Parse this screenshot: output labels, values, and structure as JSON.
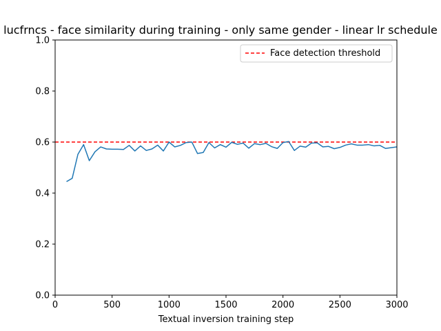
{
  "chart_data": {
    "type": "line",
    "title": "lucfrncs - face similarity during training - only same gender - linear lr schedule",
    "xlabel": "Textual inversion training step",
    "ylabel": "",
    "xlim": [
      0,
      3000
    ],
    "ylim": [
      0,
      1.0
    ],
    "xticks": [
      0,
      500,
      1000,
      1500,
      2000,
      2500,
      3000
    ],
    "xtick_labels": [
      "0",
      "500",
      "1000",
      "1500",
      "2000",
      "2500",
      "3000"
    ],
    "yticks": [
      0.0,
      0.2,
      0.4,
      0.6,
      0.8,
      1.0
    ],
    "ytick_labels": [
      "0.0",
      "0.2",
      "0.4",
      "0.6",
      "0.8",
      "1.0"
    ],
    "grid": false,
    "legend_position": "top-right",
    "colors": {
      "series": "#1f77b4",
      "threshold": "#ff0000"
    },
    "series": [
      {
        "x": [
          100,
          150,
          200,
          250,
          300,
          350,
          400,
          450,
          500,
          550,
          600,
          650,
          700,
          750,
          800,
          850,
          900,
          950,
          1000,
          1050,
          1100,
          1150,
          1200,
          1250,
          1300,
          1350,
          1400,
          1450,
          1500,
          1550,
          1600,
          1650,
          1700,
          1750,
          1800,
          1850,
          1900,
          1950,
          2000,
          2050,
          2100,
          2150,
          2200,
          2250,
          2300,
          2350,
          2400,
          2450,
          2500,
          2550,
          2600,
          2650,
          2700,
          2750,
          2800,
          2850,
          2900,
          2950,
          3000
        ],
        "values": [
          0.445,
          0.458,
          0.552,
          0.59,
          0.527,
          0.562,
          0.581,
          0.573,
          0.572,
          0.572,
          0.571,
          0.587,
          0.565,
          0.585,
          0.567,
          0.573,
          0.588,
          0.565,
          0.6,
          0.581,
          0.587,
          0.598,
          0.6,
          0.555,
          0.559,
          0.598,
          0.577,
          0.59,
          0.58,
          0.599,
          0.591,
          0.596,
          0.576,
          0.594,
          0.59,
          0.595,
          0.582,
          0.575,
          0.598,
          0.602,
          0.567,
          0.584,
          0.58,
          0.596,
          0.597,
          0.581,
          0.583,
          0.574,
          0.579,
          0.588,
          0.593,
          0.588,
          0.588,
          0.59,
          0.585,
          0.587,
          0.575,
          0.578,
          0.581
        ]
      }
    ],
    "reference_lines": [
      {
        "name": "Face detection threshold",
        "y": 0.6,
        "style": "dashed"
      }
    ]
  }
}
